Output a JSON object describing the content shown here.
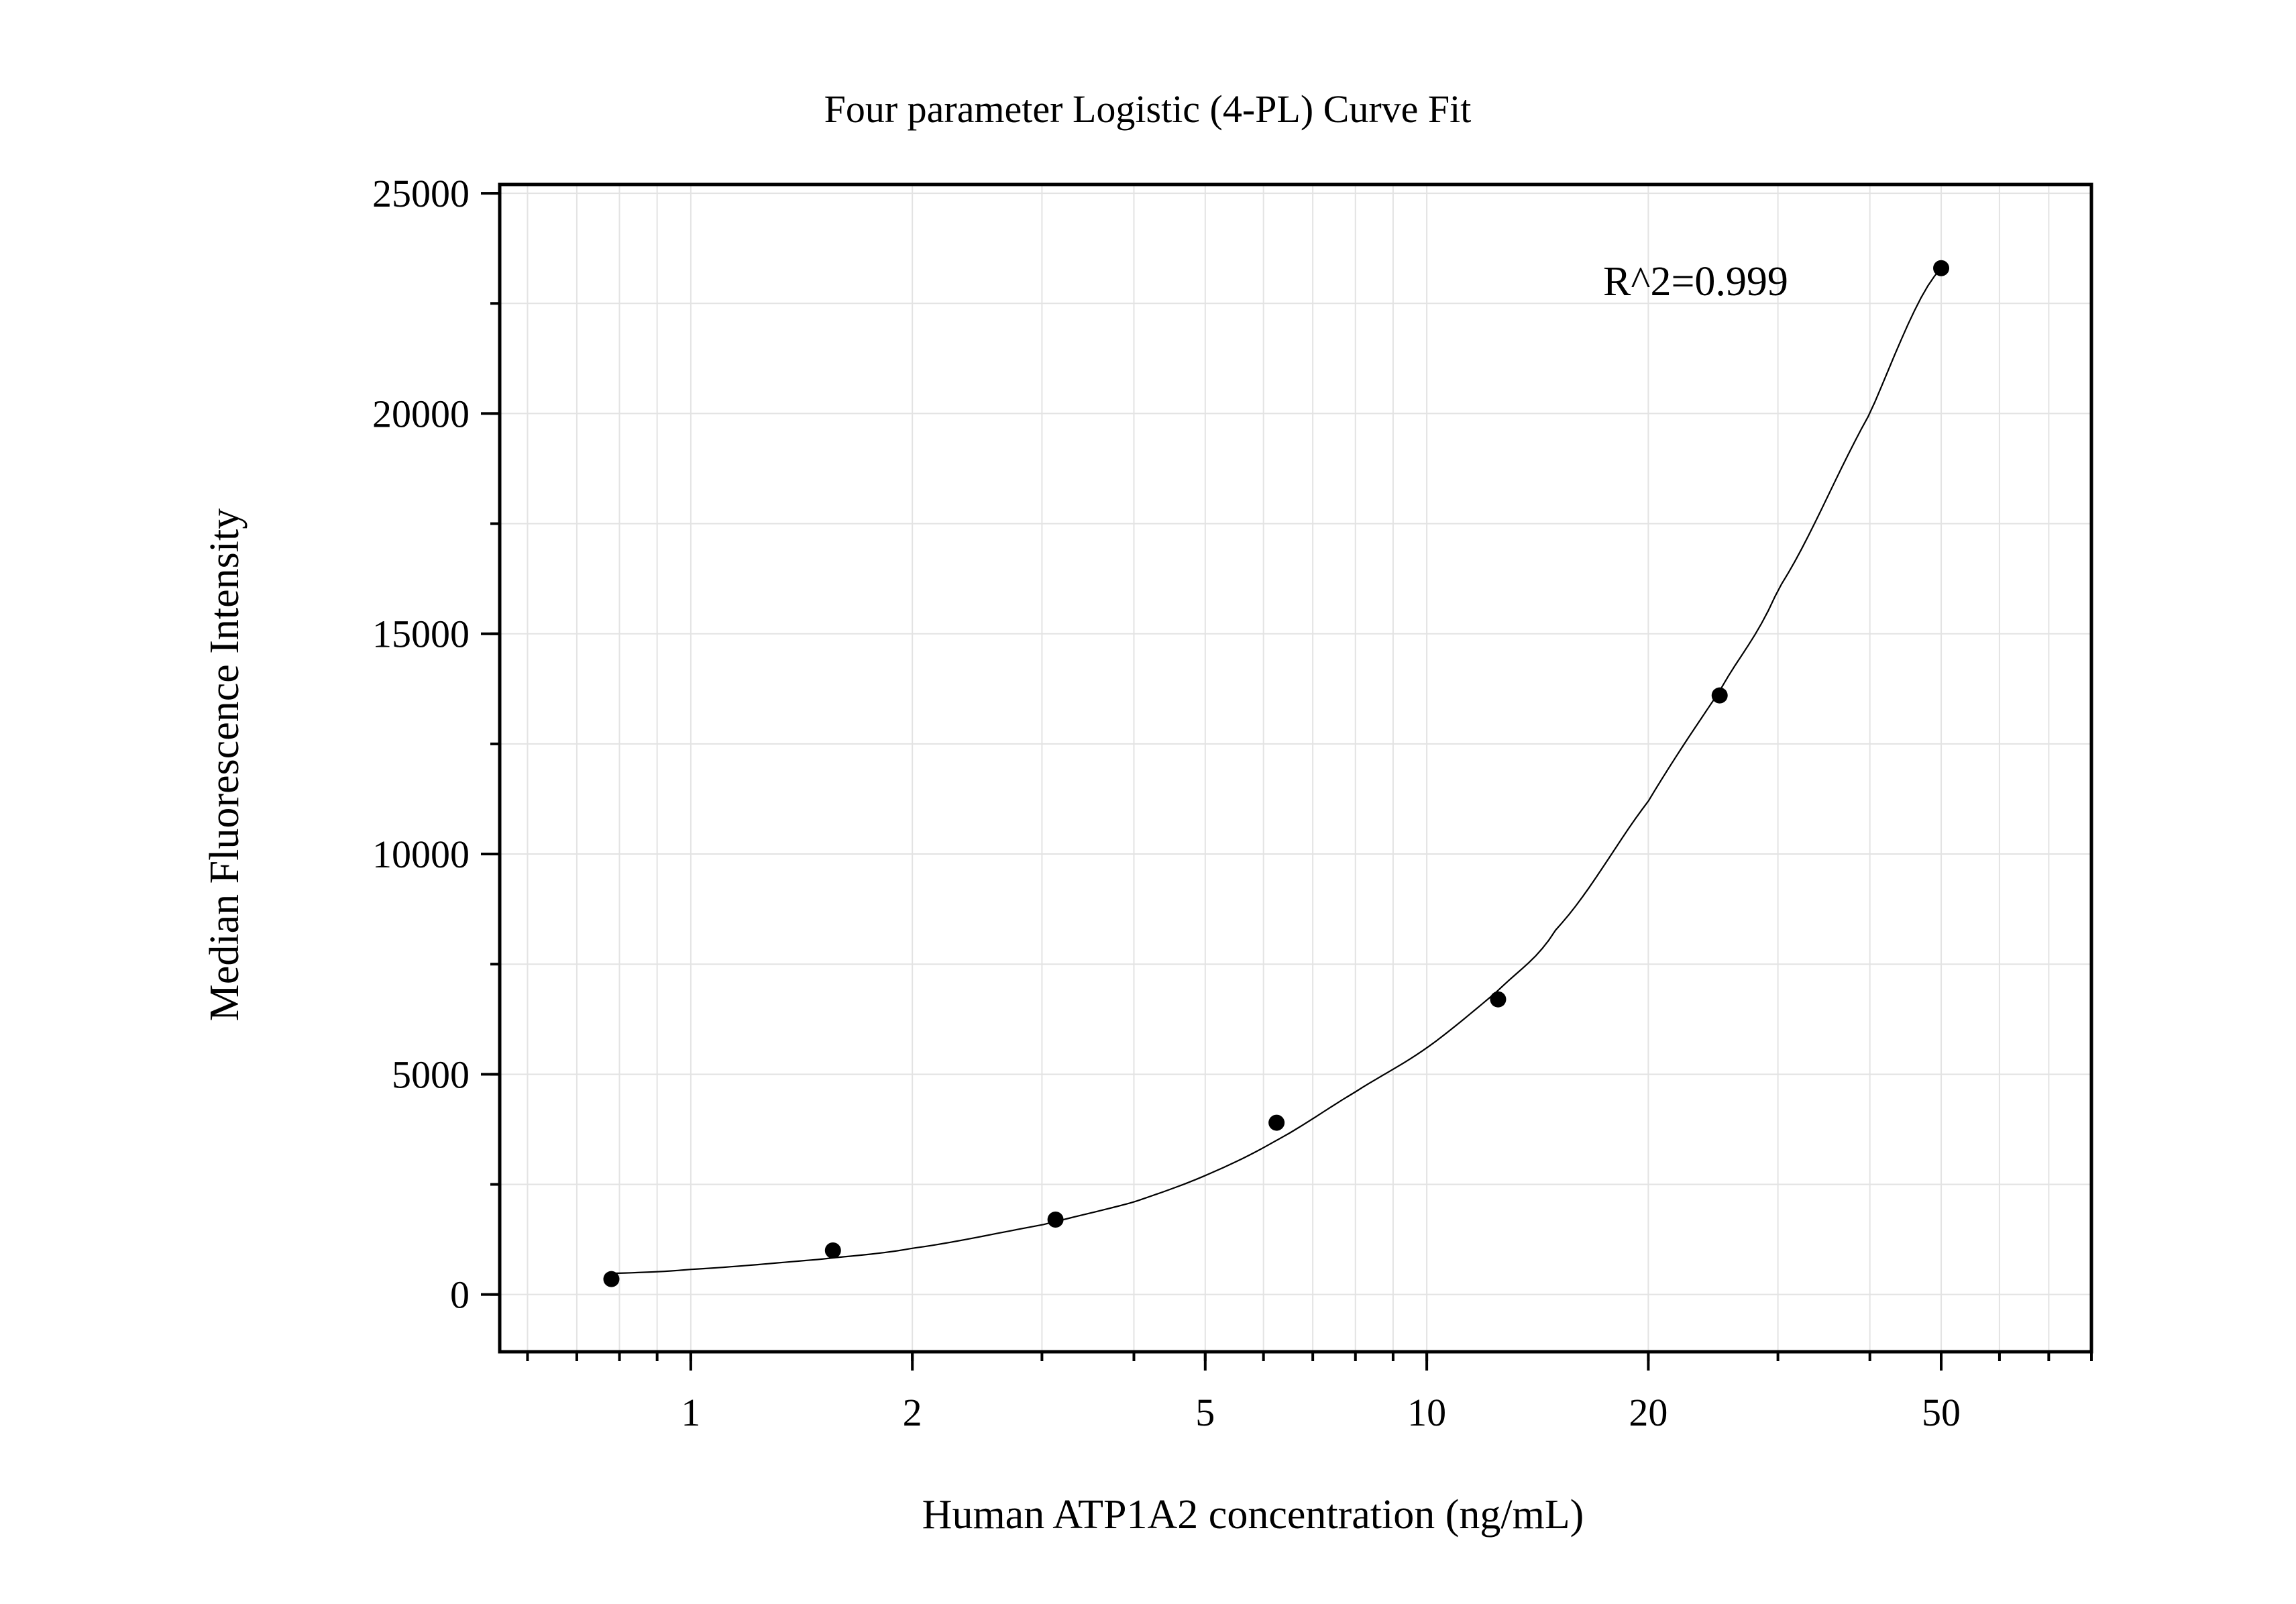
{
  "chart_data": {
    "type": "scatter",
    "title": "Four parameter Logistic (4-PL) Curve Fit",
    "xlabel": "Human ATP1A2 concentration (ng/mL)",
    "ylabel": "Median Fluorescence Intensity",
    "xscale": "log",
    "xlim": [
      0.55,
      80
    ],
    "ylim": [
      -1300,
      25200
    ],
    "x_ticks": [
      1,
      2,
      5,
      10,
      20,
      50
    ],
    "x_tick_labels": [
      "1",
      "2",
      "5",
      "10",
      "20",
      "50"
    ],
    "y_ticks": [
      0,
      5000,
      10000,
      15000,
      20000,
      25000
    ],
    "y_tick_labels": [
      "0",
      "5000",
      "10000",
      "15000",
      "20000",
      "25000"
    ],
    "grid": true,
    "legend": "none",
    "annotation": "R^2=0.999",
    "series": [
      {
        "x": [
          0.78,
          1.56,
          3.13,
          6.25,
          12.5,
          25,
          50
        ],
        "y": [
          350,
          1000,
          1700,
          3900,
          6700,
          13600,
          23300
        ]
      }
    ],
    "fit": {
      "model": "4-PL",
      "x_range": [
        0.78,
        50
      ],
      "points": [
        [
          0.78,
          480
        ],
        [
          1.0,
          570
        ],
        [
          1.5,
          800
        ],
        [
          2.0,
          1050
        ],
        [
          3.0,
          1580
        ],
        [
          4.0,
          2100
        ],
        [
          5.0,
          2700
        ],
        [
          6.25,
          3500
        ],
        [
          8.0,
          4600
        ],
        [
          10.0,
          5600
        ],
        [
          12.5,
          6900
        ],
        [
          15.0,
          8300
        ],
        [
          20.0,
          11200
        ],
        [
          25.0,
          13700
        ],
        [
          30.0,
          16000
        ],
        [
          40.0,
          20000
        ],
        [
          50.0,
          23300
        ]
      ]
    },
    "colors": {
      "points": "#000000",
      "curve": "#000000",
      "grid": "#e3e3e3",
      "frame": "#000000"
    }
  }
}
